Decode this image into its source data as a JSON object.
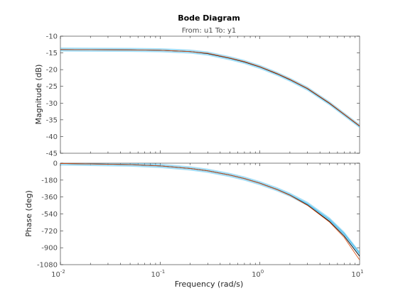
{
  "chart_data": {
    "type": "line",
    "title": "Bode Diagram",
    "subtitle": "From: u1  To: y1",
    "xlabel": "Frequency  (rad/s)",
    "xscale": "log",
    "xlim": [
      0.01,
      10
    ],
    "x_ticks": [
      {
        "value": 0.01,
        "base": "10",
        "exp": "-2"
      },
      {
        "value": 0.1,
        "base": "10",
        "exp": "-1"
      },
      {
        "value": 1,
        "base": "10",
        "exp": "0"
      },
      {
        "value": 10,
        "base": "10",
        "exp": "1"
      }
    ],
    "grid": false,
    "panels": [
      {
        "ylabel": "Magnitude (dB)",
        "ylim": [
          -45,
          -10
        ],
        "yticks": [
          "-10",
          "-15",
          "-20",
          "-25",
          "-30",
          "-35",
          "-40",
          "-45"
        ],
        "ytick_values": [
          -10,
          -15,
          -20,
          -25,
          -30,
          -35,
          -40,
          -45
        ],
        "series": [
          {
            "color": "#4dbeee",
            "band_db": 0.6,
            "x": [
              0.01,
              0.05,
              0.1,
              0.2,
              0.3,
              0.5,
              0.7,
              1,
              1.5,
              2,
              3,
              5,
              7,
              10
            ],
            "y": [
              -14.0,
              -14.1,
              -14.2,
              -14.6,
              -15.2,
              -16.6,
              -17.7,
              -19.2,
              -21.3,
              -23.0,
              -25.7,
              -30.1,
              -33.4,
              -36.9
            ]
          },
          {
            "color": "#000000",
            "x": [
              0.01,
              0.05,
              0.1,
              0.2,
              0.3,
              0.5,
              0.7,
              1,
              1.5,
              2,
              3,
              5,
              7,
              10
            ],
            "y": [
              -14.0,
              -14.1,
              -14.2,
              -14.6,
              -15.2,
              -16.6,
              -17.7,
              -19.2,
              -21.3,
              -23.0,
              -25.7,
              -30.1,
              -33.4,
              -36.9
            ]
          },
          {
            "color": "#d95319",
            "x": [
              0.01,
              0.05,
              0.1,
              0.2,
              0.3,
              0.5,
              0.7,
              1,
              1.5,
              2,
              3,
              5,
              7,
              10
            ],
            "y": [
              -14.0,
              -14.1,
              -14.2,
              -14.6,
              -15.1,
              -16.5,
              -17.6,
              -19.1,
              -21.2,
              -22.9,
              -25.6,
              -30.0,
              -33.3,
              -36.8
            ]
          }
        ]
      },
      {
        "ylabel": "Phase (deg)",
        "ylim": [
          -1080,
          0
        ],
        "yticks": [
          "0",
          "-180",
          "-360",
          "-540",
          "-720",
          "-900",
          "-1080"
        ],
        "ytick_values": [
          0,
          -180,
          -360,
          -540,
          -720,
          -900,
          -1080
        ],
        "series": [
          {
            "color": "#4dbeee",
            "band_deg": 22,
            "x": [
              0.01,
              0.05,
              0.1,
              0.2,
              0.3,
              0.5,
              0.7,
              1,
              1.5,
              2,
              3,
              5,
              7,
              10
            ],
            "y": [
              -3,
              -15,
              -29,
              -56,
              -81,
              -126,
              -164,
              -213,
              -280,
              -336,
              -433,
              -600,
              -750,
              -960
            ]
          },
          {
            "color": "#000000",
            "x": [
              0.01,
              0.05,
              0.1,
              0.2,
              0.3,
              0.5,
              0.7,
              1,
              1.5,
              2,
              3,
              5,
              7,
              10
            ],
            "y": [
              -3,
              -15,
              -29,
              -56,
              -81,
              -126,
              -164,
              -213,
              -282,
              -340,
              -445,
              -620,
              -775,
              -990
            ]
          },
          {
            "color": "#d95319",
            "x": [
              0.01,
              0.05,
              0.1,
              0.2,
              0.3,
              0.5,
              0.7,
              1,
              1.5,
              2,
              3,
              5,
              7,
              10
            ],
            "y": [
              -3,
              -15,
              -29,
              -56,
              -81,
              -126,
              -164,
              -214,
              -283,
              -342,
              -449,
              -628,
              -790,
              -1030
            ]
          }
        ]
      }
    ]
  }
}
